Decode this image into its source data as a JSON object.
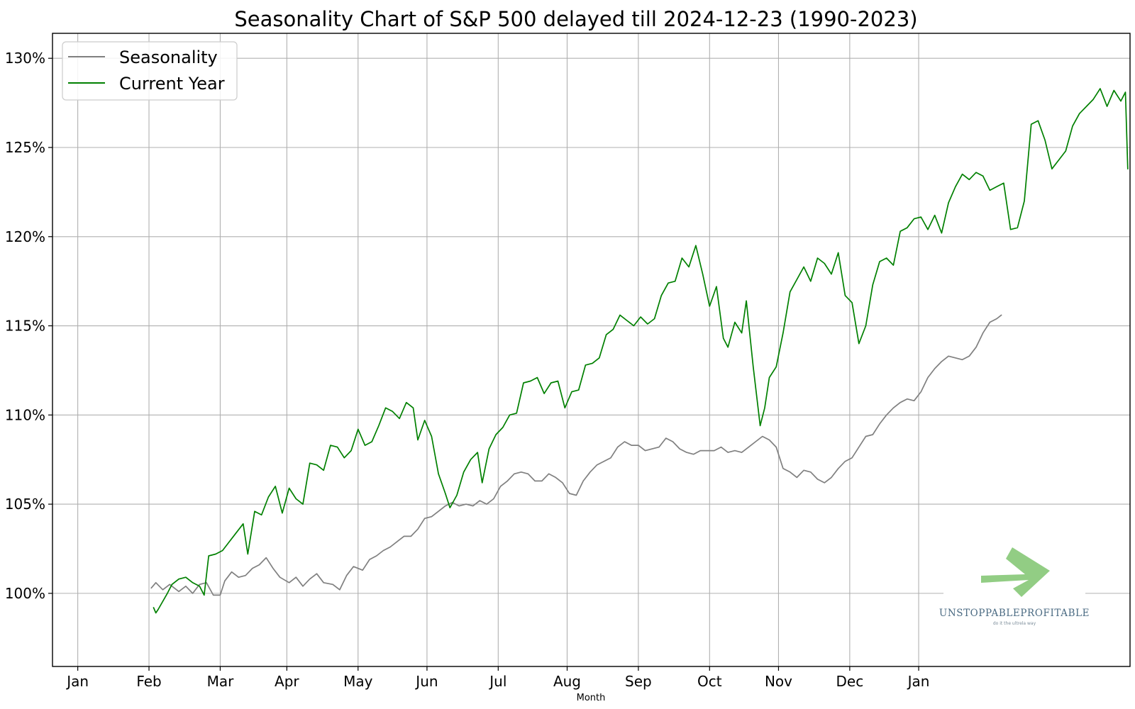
{
  "chart_data": {
    "type": "line",
    "title": "Seasonality Chart of S&P 500 delayed till 2024-12-23 (1990-2023)",
    "xlabel": "Month",
    "ylabel": "",
    "x_tick_labels": [
      "Jan",
      "Feb",
      "Mar",
      "Apr",
      "May",
      "Jun",
      "Jul",
      "Aug",
      "Sep",
      "Oct",
      "Nov",
      "Dec",
      "Jan"
    ],
    "y_ticks": [
      100,
      105,
      110,
      115,
      120,
      125,
      130
    ],
    "y_tick_labels": [
      "100%",
      "105%",
      "110%",
      "115%",
      "120%",
      "125%",
      "130%"
    ],
    "xlim": [
      "2023-11-20",
      "2025-03-03"
    ],
    "ylim": [
      95.9,
      131.4
    ],
    "grid": true,
    "legend_position": "top-left",
    "series": [
      {
        "name": "Seasonality",
        "color": "#808080",
        "points": [
          [
            "2024-01-02",
            100.3
          ],
          [
            "2024-01-04",
            100.6
          ],
          [
            "2024-01-07",
            100.2
          ],
          [
            "2024-01-10",
            100.5
          ],
          [
            "2024-01-14",
            100.1
          ],
          [
            "2024-01-17",
            100.4
          ],
          [
            "2024-01-20",
            100.0
          ],
          [
            "2024-01-23",
            100.5
          ],
          [
            "2024-01-26",
            100.6
          ],
          [
            "2024-01-29",
            99.9
          ],
          [
            "2024-02-01",
            99.9
          ],
          [
            "2024-02-03",
            100.7
          ],
          [
            "2024-02-06",
            101.2
          ],
          [
            "2024-02-09",
            100.9
          ],
          [
            "2024-02-12",
            101.0
          ],
          [
            "2024-02-15",
            101.4
          ],
          [
            "2024-02-18",
            101.6
          ],
          [
            "2024-02-21",
            102.0
          ],
          [
            "2024-02-24",
            101.4
          ],
          [
            "2024-02-27",
            100.9
          ],
          [
            "2024-03-02",
            100.6
          ],
          [
            "2024-03-05",
            100.9
          ],
          [
            "2024-03-08",
            100.4
          ],
          [
            "2024-03-11",
            100.8
          ],
          [
            "2024-03-14",
            101.1
          ],
          [
            "2024-03-17",
            100.6
          ],
          [
            "2024-03-21",
            100.5
          ],
          [
            "2024-03-24",
            100.2
          ],
          [
            "2024-03-27",
            101.0
          ],
          [
            "2024-03-30",
            101.5
          ],
          [
            "2024-04-03",
            101.3
          ],
          [
            "2024-04-06",
            101.9
          ],
          [
            "2024-04-09",
            102.1
          ],
          [
            "2024-04-12",
            102.4
          ],
          [
            "2024-04-15",
            102.6
          ],
          [
            "2024-04-18",
            102.9
          ],
          [
            "2024-04-21",
            103.2
          ],
          [
            "2024-04-24",
            103.2
          ],
          [
            "2024-04-27",
            103.6
          ],
          [
            "2024-04-30",
            104.2
          ],
          [
            "2024-05-03",
            104.3
          ],
          [
            "2024-05-06",
            104.6
          ],
          [
            "2024-05-09",
            104.9
          ],
          [
            "2024-05-12",
            105.1
          ],
          [
            "2024-05-15",
            104.9
          ],
          [
            "2024-05-18",
            105.0
          ],
          [
            "2024-05-21",
            104.9
          ],
          [
            "2024-05-24",
            105.2
          ],
          [
            "2024-05-27",
            105.0
          ],
          [
            "2024-05-30",
            105.3
          ],
          [
            "2024-06-02",
            106.0
          ],
          [
            "2024-06-05",
            106.3
          ],
          [
            "2024-06-08",
            106.7
          ],
          [
            "2024-06-11",
            106.8
          ],
          [
            "2024-06-14",
            106.7
          ],
          [
            "2024-06-17",
            106.3
          ],
          [
            "2024-06-20",
            106.3
          ],
          [
            "2024-06-23",
            106.7
          ],
          [
            "2024-06-26",
            106.5
          ],
          [
            "2024-06-29",
            106.2
          ],
          [
            "2024-07-02",
            105.6
          ],
          [
            "2024-07-05",
            105.5
          ],
          [
            "2024-07-08",
            106.3
          ],
          [
            "2024-07-11",
            106.8
          ],
          [
            "2024-07-14",
            107.2
          ],
          [
            "2024-07-17",
            107.4
          ],
          [
            "2024-07-20",
            107.6
          ],
          [
            "2024-07-23",
            108.2
          ],
          [
            "2024-07-26",
            108.5
          ],
          [
            "2024-07-29",
            108.3
          ],
          [
            "2024-08-01",
            108.3
          ],
          [
            "2024-08-04",
            108.0
          ],
          [
            "2024-08-07",
            108.1
          ],
          [
            "2024-08-10",
            108.2
          ],
          [
            "2024-08-13",
            108.7
          ],
          [
            "2024-08-16",
            108.5
          ],
          [
            "2024-08-19",
            108.1
          ],
          [
            "2024-08-22",
            107.9
          ],
          [
            "2024-08-25",
            107.8
          ],
          [
            "2024-08-28",
            108.0
          ],
          [
            "2024-08-31",
            108.0
          ],
          [
            "2024-09-03",
            108.0
          ],
          [
            "2024-09-06",
            108.2
          ],
          [
            "2024-09-09",
            107.9
          ],
          [
            "2024-09-12",
            108.0
          ],
          [
            "2024-09-15",
            107.9
          ],
          [
            "2024-09-18",
            108.2
          ],
          [
            "2024-09-21",
            108.5
          ],
          [
            "2024-09-24",
            108.8
          ],
          [
            "2024-09-27",
            108.6
          ],
          [
            "2024-09-30",
            108.2
          ],
          [
            "2024-10-03",
            107.0
          ],
          [
            "2024-10-06",
            106.8
          ],
          [
            "2024-10-09",
            106.5
          ],
          [
            "2024-10-12",
            106.9
          ],
          [
            "2024-10-15",
            106.8
          ],
          [
            "2024-10-18",
            106.4
          ],
          [
            "2024-10-21",
            106.2
          ],
          [
            "2024-10-24",
            106.5
          ],
          [
            "2024-10-27",
            107.0
          ],
          [
            "2024-10-30",
            107.4
          ],
          [
            "2024-11-02",
            107.6
          ],
          [
            "2024-11-05",
            108.2
          ],
          [
            "2024-11-08",
            108.8
          ],
          [
            "2024-11-11",
            108.9
          ],
          [
            "2024-11-14",
            109.5
          ],
          [
            "2024-11-17",
            110.0
          ],
          [
            "2024-11-20",
            110.4
          ],
          [
            "2024-11-23",
            110.7
          ],
          [
            "2024-11-26",
            110.9
          ],
          [
            "2024-11-29",
            110.8
          ],
          [
            "2024-12-02",
            111.3
          ],
          [
            "2024-12-05",
            112.1
          ],
          [
            "2024-12-08",
            112.6
          ],
          [
            "2024-12-11",
            113.0
          ],
          [
            "2024-12-14",
            113.3
          ],
          [
            "2024-12-17",
            113.2
          ],
          [
            "2024-12-20",
            113.1
          ],
          [
            "2024-12-23",
            113.3
          ],
          [
            "2024-12-26",
            113.8
          ],
          [
            "2024-12-29",
            114.6
          ],
          [
            "2025-01-01",
            115.2
          ],
          [
            "2025-01-04",
            115.4
          ],
          [
            "2025-01-06",
            115.6
          ]
        ]
      },
      {
        "name": "Current Year",
        "color": "#008000",
        "points": [
          [
            "2024-01-03",
            99.2
          ],
          [
            "2024-01-04",
            98.9
          ],
          [
            "2024-01-05",
            99.1
          ],
          [
            "2024-01-09",
            100.0
          ],
          [
            "2024-01-11",
            100.5
          ],
          [
            "2024-01-14",
            100.8
          ],
          [
            "2024-01-17",
            100.9
          ],
          [
            "2024-01-20",
            100.6
          ],
          [
            "2024-01-23",
            100.4
          ],
          [
            "2024-01-25",
            99.9
          ],
          [
            "2024-01-27",
            102.1
          ],
          [
            "2024-01-30",
            102.2
          ],
          [
            "2024-02-02",
            102.4
          ],
          [
            "2024-02-05",
            102.9
          ],
          [
            "2024-02-08",
            103.4
          ],
          [
            "2024-02-11",
            103.9
          ],
          [
            "2024-02-13",
            102.2
          ],
          [
            "2024-02-16",
            104.6
          ],
          [
            "2024-02-19",
            104.4
          ],
          [
            "2024-02-22",
            105.4
          ],
          [
            "2024-02-25",
            106.0
          ],
          [
            "2024-02-28",
            104.5
          ],
          [
            "2024-03-02",
            105.9
          ],
          [
            "2024-03-05",
            105.3
          ],
          [
            "2024-03-08",
            105.0
          ],
          [
            "2024-03-11",
            107.3
          ],
          [
            "2024-03-14",
            107.2
          ],
          [
            "2024-03-17",
            106.9
          ],
          [
            "2024-03-20",
            108.3
          ],
          [
            "2024-03-23",
            108.2
          ],
          [
            "2024-03-26",
            107.6
          ],
          [
            "2024-03-29",
            108.0
          ],
          [
            "2024-04-01",
            109.2
          ],
          [
            "2024-04-04",
            108.3
          ],
          [
            "2024-04-07",
            108.5
          ],
          [
            "2024-04-10",
            109.4
          ],
          [
            "2024-04-13",
            110.4
          ],
          [
            "2024-04-16",
            110.2
          ],
          [
            "2024-04-19",
            109.8
          ],
          [
            "2024-04-22",
            110.7
          ],
          [
            "2024-04-25",
            110.4
          ],
          [
            "2024-04-27",
            108.6
          ],
          [
            "2024-04-30",
            109.7
          ],
          [
            "2024-05-03",
            108.8
          ],
          [
            "2024-05-06",
            106.7
          ],
          [
            "2024-05-09",
            105.6
          ],
          [
            "2024-05-11",
            104.8
          ],
          [
            "2024-05-14",
            105.5
          ],
          [
            "2024-05-17",
            106.8
          ],
          [
            "2024-05-20",
            107.5
          ],
          [
            "2024-05-23",
            107.9
          ],
          [
            "2024-05-25",
            106.2
          ],
          [
            "2024-05-28",
            108.1
          ],
          [
            "2024-05-31",
            108.9
          ],
          [
            "2024-06-03",
            109.3
          ],
          [
            "2024-06-06",
            110.0
          ],
          [
            "2024-06-09",
            110.1
          ],
          [
            "2024-06-12",
            111.8
          ],
          [
            "2024-06-15",
            111.9
          ],
          [
            "2024-06-18",
            112.1
          ],
          [
            "2024-06-21",
            111.2
          ],
          [
            "2024-06-24",
            111.8
          ],
          [
            "2024-06-27",
            111.9
          ],
          [
            "2024-06-30",
            110.4
          ],
          [
            "2024-07-03",
            111.3
          ],
          [
            "2024-07-06",
            111.4
          ],
          [
            "2024-07-09",
            112.8
          ],
          [
            "2024-07-12",
            112.9
          ],
          [
            "2024-07-15",
            113.2
          ],
          [
            "2024-07-18",
            114.5
          ],
          [
            "2024-07-21",
            114.8
          ],
          [
            "2024-07-24",
            115.6
          ],
          [
            "2024-07-27",
            115.3
          ],
          [
            "2024-07-30",
            115.0
          ],
          [
            "2024-08-02",
            115.5
          ],
          [
            "2024-08-05",
            115.1
          ],
          [
            "2024-08-08",
            115.4
          ],
          [
            "2024-08-11",
            116.7
          ],
          [
            "2024-08-14",
            117.4
          ],
          [
            "2024-08-17",
            117.5
          ],
          [
            "2024-08-20",
            118.8
          ],
          [
            "2024-08-23",
            118.3
          ],
          [
            "2024-08-26",
            119.5
          ],
          [
            "2024-08-29",
            117.9
          ],
          [
            "2024-09-01",
            116.1
          ],
          [
            "2024-09-04",
            117.2
          ],
          [
            "2024-09-07",
            114.3
          ],
          [
            "2024-09-09",
            113.8
          ],
          [
            "2024-09-12",
            115.2
          ],
          [
            "2024-09-15",
            114.6
          ],
          [
            "2024-09-17",
            116.4
          ],
          [
            "2024-09-20",
            112.7
          ],
          [
            "2024-09-23",
            109.4
          ],
          [
            "2024-09-25",
            110.4
          ],
          [
            "2024-09-27",
            112.1
          ],
          [
            "2024-09-30",
            112.7
          ],
          [
            "2024-10-03",
            114.6
          ],
          [
            "2024-10-06",
            116.9
          ],
          [
            "2024-10-09",
            117.6
          ],
          [
            "2024-10-12",
            118.3
          ],
          [
            "2024-10-15",
            117.5
          ],
          [
            "2024-10-18",
            118.8
          ],
          [
            "2024-10-21",
            118.5
          ],
          [
            "2024-10-24",
            117.9
          ],
          [
            "2024-10-27",
            119.1
          ],
          [
            "2024-10-30",
            116.7
          ],
          [
            "2024-11-02",
            116.3
          ],
          [
            "2024-11-05",
            114.0
          ],
          [
            "2024-11-08",
            115.0
          ],
          [
            "2024-11-11",
            117.3
          ],
          [
            "2024-11-14",
            118.6
          ],
          [
            "2024-11-17",
            118.8
          ],
          [
            "2024-11-20",
            118.4
          ],
          [
            "2024-11-23",
            120.3
          ],
          [
            "2024-11-26",
            120.5
          ],
          [
            "2024-11-29",
            121.0
          ],
          [
            "2024-12-02",
            121.1
          ],
          [
            "2024-12-05",
            120.4
          ],
          [
            "2024-12-08",
            121.2
          ],
          [
            "2024-12-11",
            120.2
          ],
          [
            "2024-12-14",
            121.9
          ],
          [
            "2024-12-17",
            122.8
          ],
          [
            "2024-12-20",
            123.5
          ],
          [
            "2024-12-23",
            123.2
          ],
          [
            "2024-12-26",
            123.6
          ],
          [
            "2024-12-29",
            123.4
          ],
          [
            "2025-01-01",
            122.6
          ],
          [
            "2025-01-04",
            122.8
          ],
          [
            "2025-01-07",
            123.0
          ],
          [
            "2025-01-10",
            120.4
          ],
          [
            "2025-01-13",
            120.5
          ],
          [
            "2025-01-16",
            122.0
          ],
          [
            "2025-01-19",
            126.3
          ],
          [
            "2025-01-22",
            126.5
          ],
          [
            "2025-01-25",
            125.4
          ],
          [
            "2025-01-28",
            123.8
          ],
          [
            "2025-01-31",
            124.3
          ],
          [
            "2025-02-03",
            124.8
          ],
          [
            "2025-02-06",
            126.2
          ],
          [
            "2025-02-09",
            126.9
          ],
          [
            "2025-02-12",
            127.3
          ],
          [
            "2025-02-15",
            127.7
          ],
          [
            "2025-02-18",
            128.3
          ],
          [
            "2025-02-21",
            127.3
          ],
          [
            "2025-02-24",
            128.2
          ],
          [
            "2025-02-27",
            127.6
          ],
          [
            "2025-03-01",
            128.1
          ],
          [
            "2025-03-02",
            123.8
          ]
        ]
      }
    ]
  },
  "watermark": {
    "name": "UNSTOPPABLEPROFITABLE",
    "tagline": "do it the ultrela way",
    "arrow_color": "#7fc46e"
  }
}
